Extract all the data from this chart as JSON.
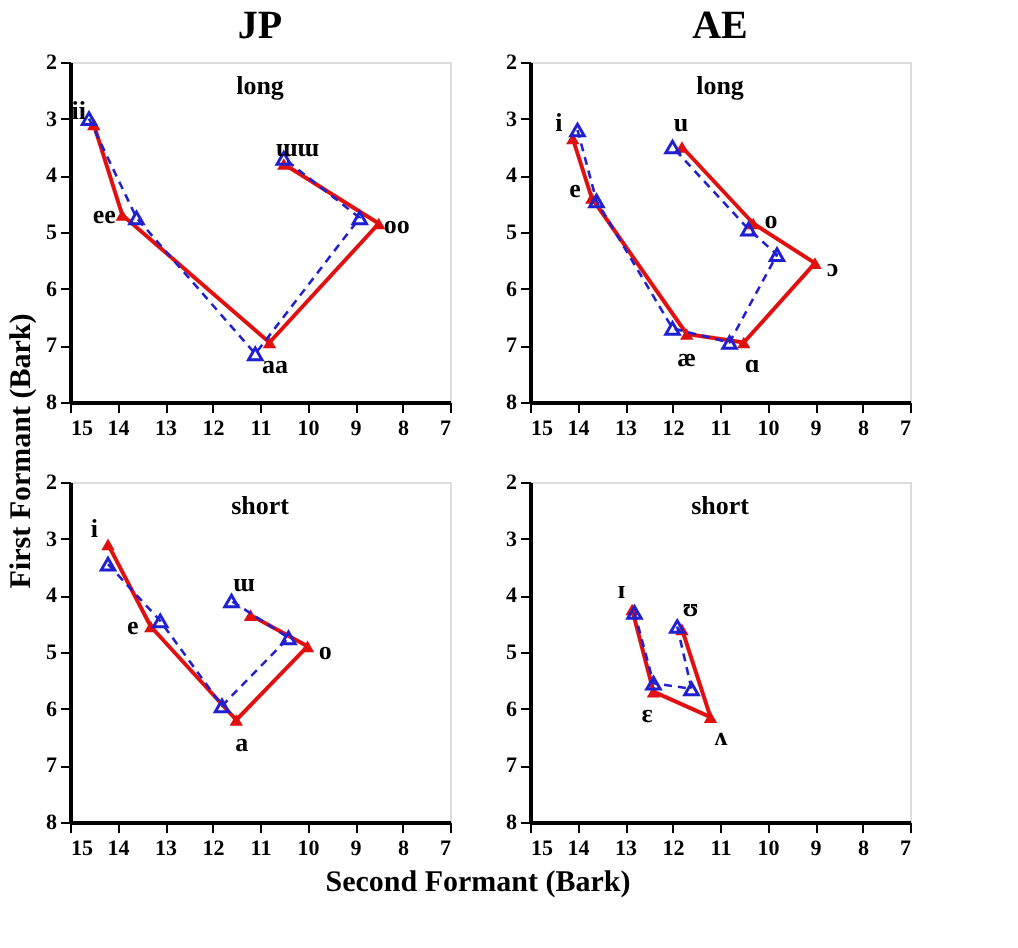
{
  "chart_data": [
    {
      "type": "line",
      "title": "JP",
      "subtitle": "long",
      "ylabel": "First Formant (Bark)",
      "xlim": [
        15,
        7
      ],
      "ylim": [
        8,
        2
      ],
      "xticks": [
        15,
        14,
        13,
        12,
        11,
        10,
        9,
        8,
        7
      ],
      "yticks": [
        2,
        3,
        4,
        5,
        6,
        7,
        8
      ],
      "grid": false,
      "marker": "triangle",
      "series": [
        {
          "color": "#e01010",
          "line_style": "solid",
          "x": [
            14.5,
            13.9,
            10.8,
            8.5,
            10.5
          ],
          "values": [
            3.1,
            4.7,
            6.95,
            4.85,
            3.8
          ]
        },
        {
          "color": "#2020d0",
          "line_style": "dashed",
          "x": [
            14.6,
            13.6,
            11.1,
            8.9,
            10.5
          ],
          "values": [
            3.0,
            4.75,
            7.15,
            4.75,
            3.7
          ]
        }
      ],
      "annotations": [
        {
          "text": "ii",
          "x": 14.5,
          "y": 3.1
        },
        {
          "text": "ee",
          "x": 13.9,
          "y": 4.7
        },
        {
          "text": "aa",
          "x": 10.8,
          "y": 6.95
        },
        {
          "text": "oo",
          "x": 8.5,
          "y": 4.85
        },
        {
          "text": "ɯɯ",
          "x": 10.5,
          "y": 3.8
        }
      ]
    },
    {
      "type": "line",
      "title": "AE",
      "subtitle": "long",
      "xlim": [
        15,
        7
      ],
      "ylim": [
        8,
        2
      ],
      "xticks": [
        15,
        14,
        13,
        12,
        11,
        10,
        9,
        8,
        7
      ],
      "yticks": [
        2,
        3,
        4,
        5,
        6,
        7,
        8
      ],
      "grid": false,
      "marker": "triangle",
      "series": [
        {
          "color": "#e01010",
          "line_style": "solid",
          "x": [
            14.1,
            13.7,
            11.7,
            10.5,
            9.0,
            10.3,
            11.8
          ],
          "values": [
            3.35,
            4.4,
            6.8,
            6.95,
            5.55,
            4.85,
            3.5
          ]
        },
        {
          "color": "#2020d0",
          "line_style": "dashed",
          "x": [
            14.0,
            13.6,
            12.0,
            10.8,
            9.8,
            10.4,
            12.0
          ],
          "values": [
            3.2,
            4.45,
            6.7,
            6.95,
            5.4,
            4.95,
            3.5
          ]
        }
      ],
      "annotations": [
        {
          "text": "i",
          "x": 14.1,
          "y": 3.35
        },
        {
          "text": "e",
          "x": 13.7,
          "y": 4.4
        },
        {
          "text": "æ",
          "x": 11.7,
          "y": 6.8
        },
        {
          "text": "ɑ",
          "x": 10.5,
          "y": 6.95
        },
        {
          "text": "ɔ",
          "x": 9.0,
          "y": 5.55
        },
        {
          "text": "o",
          "x": 10.3,
          "y": 4.85
        },
        {
          "text": "u",
          "x": 11.8,
          "y": 3.5
        }
      ]
    },
    {
      "type": "line",
      "subtitle": "short",
      "xlabel": "Second Formant (Bark)",
      "xlim": [
        15,
        7
      ],
      "ylim": [
        8,
        2
      ],
      "xticks": [
        15,
        14,
        13,
        12,
        11,
        10,
        9,
        8,
        7
      ],
      "yticks": [
        2,
        3,
        4,
        5,
        6,
        7,
        8
      ],
      "grid": false,
      "marker": "triangle",
      "series": [
        {
          "color": "#e01010",
          "line_style": "solid",
          "x": [
            14.2,
            13.3,
            11.5,
            10.0,
            11.2
          ],
          "values": [
            3.1,
            4.55,
            6.2,
            4.9,
            4.35
          ]
        },
        {
          "color": "#2020d0",
          "line_style": "dashed",
          "x": [
            14.2,
            13.1,
            11.8,
            10.4,
            11.6
          ],
          "values": [
            3.45,
            4.45,
            5.95,
            4.75,
            4.1
          ]
        }
      ],
      "annotations": [
        {
          "text": "i",
          "x": 14.2,
          "y": 3.1
        },
        {
          "text": "e",
          "x": 13.3,
          "y": 4.55
        },
        {
          "text": "a",
          "x": 11.5,
          "y": 6.2
        },
        {
          "text": "o",
          "x": 10.0,
          "y": 4.9
        },
        {
          "text": "ɯ",
          "x": 11.6,
          "y": 4.1
        }
      ]
    },
    {
      "type": "line",
      "subtitle": "short",
      "xlim": [
        15,
        7
      ],
      "ylim": [
        8,
        2
      ],
      "xticks": [
        15,
        14,
        13,
        12,
        11,
        10,
        9,
        8,
        7
      ],
      "yticks": [
        2,
        3,
        4,
        5,
        6,
        7,
        8
      ],
      "grid": false,
      "marker": "triangle",
      "series": [
        {
          "color": "#e01010",
          "line_style": "solid",
          "x": [
            12.85,
            12.4,
            11.2,
            11.8
          ],
          "values": [
            4.25,
            5.7,
            6.15,
            4.6
          ]
        },
        {
          "color": "#2020d0",
          "line_style": "dashed",
          "x": [
            12.8,
            12.4,
            11.6,
            11.9
          ],
          "values": [
            4.3,
            5.55,
            5.65,
            4.55
          ]
        }
      ],
      "annotations": [
        {
          "text": "ɪ",
          "x": 12.85,
          "y": 4.25
        },
        {
          "text": "ɛ",
          "x": 12.4,
          "y": 5.7
        },
        {
          "text": "ʌ",
          "x": 11.2,
          "y": 6.15
        },
        {
          "text": "ʊ",
          "x": 11.8,
          "y": 4.6
        }
      ]
    }
  ]
}
